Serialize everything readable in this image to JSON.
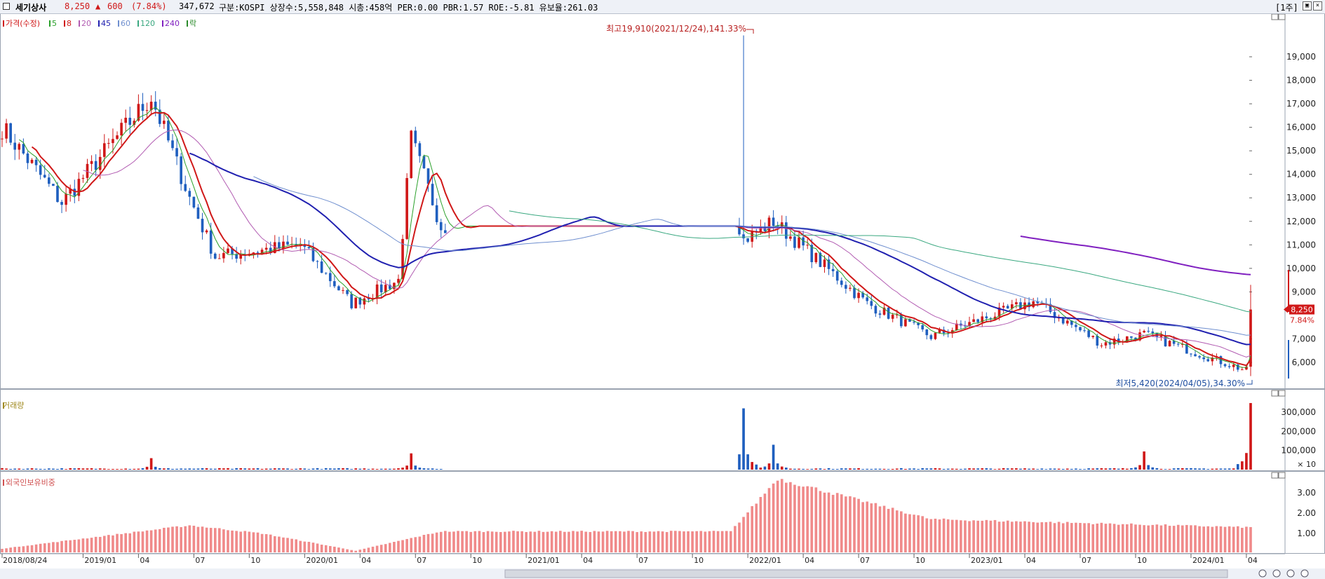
{
  "header": {
    "name": "세기상사",
    "price": "8,250",
    "change_arrow": "▲",
    "change": "600",
    "change_pct": "(7.84%)",
    "volume": "347,672",
    "info": "구분:KOSPI 상장수:5,558,848 시총:458억 PER:0.00 PBR:1.57 ROE:-5.81 유보율:261.03",
    "period": "[1주]"
  },
  "chart_data": {
    "type": "candlestick",
    "panels": [
      {
        "name": "price",
        "legend": [
          "가격(수정)",
          "5",
          "8",
          "20",
          "45",
          "60",
          "120",
          "240",
          "락"
        ],
        "legend_colors": [
          "#d01818",
          "#2aa02a",
          "#d01818",
          "#b25cb2",
          "#2020b0",
          "#6f8fcf",
          "#3aa880",
          "#8020c0",
          "#2a8a2a"
        ],
        "y_ticks": [
          "19,000",
          "18,000",
          "17,000",
          "16,000",
          "15,000",
          "14,000",
          "13,000",
          "12,000",
          "11,000",
          "10,000",
          "9,000",
          "7,000",
          "6,000"
        ],
        "last_price_label": "8,250",
        "last_pct_label": "7.84%",
        "annotations": [
          {
            "text": "최고19,910(2021/12/24),141.33%",
            "date": "2021-12-24",
            "value": 19910
          },
          {
            "text": "최저5,420(2024/04/05),34.30%",
            "date": "2024-04-05",
            "value": 5420
          }
        ],
        "ylim": [
          5200,
          20200
        ],
        "key_points": [
          {
            "date": "2018-08-24",
            "close": 16000
          },
          {
            "date": "2018-11-30",
            "close": 12800
          },
          {
            "date": "2019-04-26",
            "close": 17300
          },
          {
            "date": "2019-06-28",
            "close": 13000
          },
          {
            "date": "2019-08-09",
            "close": 10500
          },
          {
            "date": "2019-12-27",
            "close": 11000
          },
          {
            "date": "2020-03-20",
            "close": 8500
          },
          {
            "date": "2020-06-05",
            "close": 9500
          },
          {
            "date": "2020-06-26",
            "close": 15500
          },
          {
            "date": "2020-08-14",
            "close": 11800
          },
          {
            "date": "2021-12-17",
            "close": 11800
          },
          {
            "date": "2021-12-24",
            "high": 19910,
            "close": 11200
          },
          {
            "date": "2022-02-11",
            "close": 12000
          },
          {
            "date": "2022-07-15",
            "close": 8500
          },
          {
            "date": "2022-10-28",
            "close": 7100
          },
          {
            "date": "2023-04-14",
            "close": 8600
          },
          {
            "date": "2023-08-04",
            "close": 6800
          },
          {
            "date": "2023-10-13",
            "close": 7200
          },
          {
            "date": "2024-03-29",
            "close": 5650
          },
          {
            "date": "2024-04-05",
            "low": 5420,
            "close": 8250
          }
        ]
      },
      {
        "name": "volume",
        "legend": [
          "거래량"
        ],
        "y_ticks": [
          "300,000",
          "200,000",
          "100,000"
        ],
        "unit_label": "× 10",
        "spikes": [
          {
            "date": "2019-04-26",
            "value": 60000
          },
          {
            "date": "2020-06-26",
            "value": 85000
          },
          {
            "date": "2021-12-24",
            "value": 320000
          },
          {
            "date": "2022-02-11",
            "value": 130000
          },
          {
            "date": "2023-10-13",
            "value": 95000
          },
          {
            "date": "2024-04-05",
            "value": 347672
          }
        ]
      },
      {
        "name": "foreign_holding",
        "legend": [
          "외국인보유비중"
        ],
        "y_ticks": [
          "3.00",
          "2.00",
          "1.00"
        ],
        "key_points": [
          {
            "date": "2018-08-24",
            "value": 0.25
          },
          {
            "date": "2019-06-28",
            "value": 1.4
          },
          {
            "date": "2019-10-25",
            "value": 1.0
          },
          {
            "date": "2020-03-27",
            "value": 0.15
          },
          {
            "date": "2020-08-14",
            "value": 1.1
          },
          {
            "date": "2021-12-03",
            "value": 1.1
          },
          {
            "date": "2022-02-18",
            "value": 3.7
          },
          {
            "date": "2022-10-28",
            "value": 1.7
          },
          {
            "date": "2024-04-05",
            "value": 1.3
          }
        ]
      }
    ],
    "x_ticks": [
      "2018/08/24",
      "2019/01",
      "04",
      "07",
      "10",
      "2020/01",
      "04",
      "07",
      "10",
      "2021/01",
      "04",
      "07",
      "10",
      "2022/01",
      "04",
      "07",
      "10",
      "2023/01",
      "04",
      "07",
      "10",
      "2024/01",
      "04"
    ]
  }
}
